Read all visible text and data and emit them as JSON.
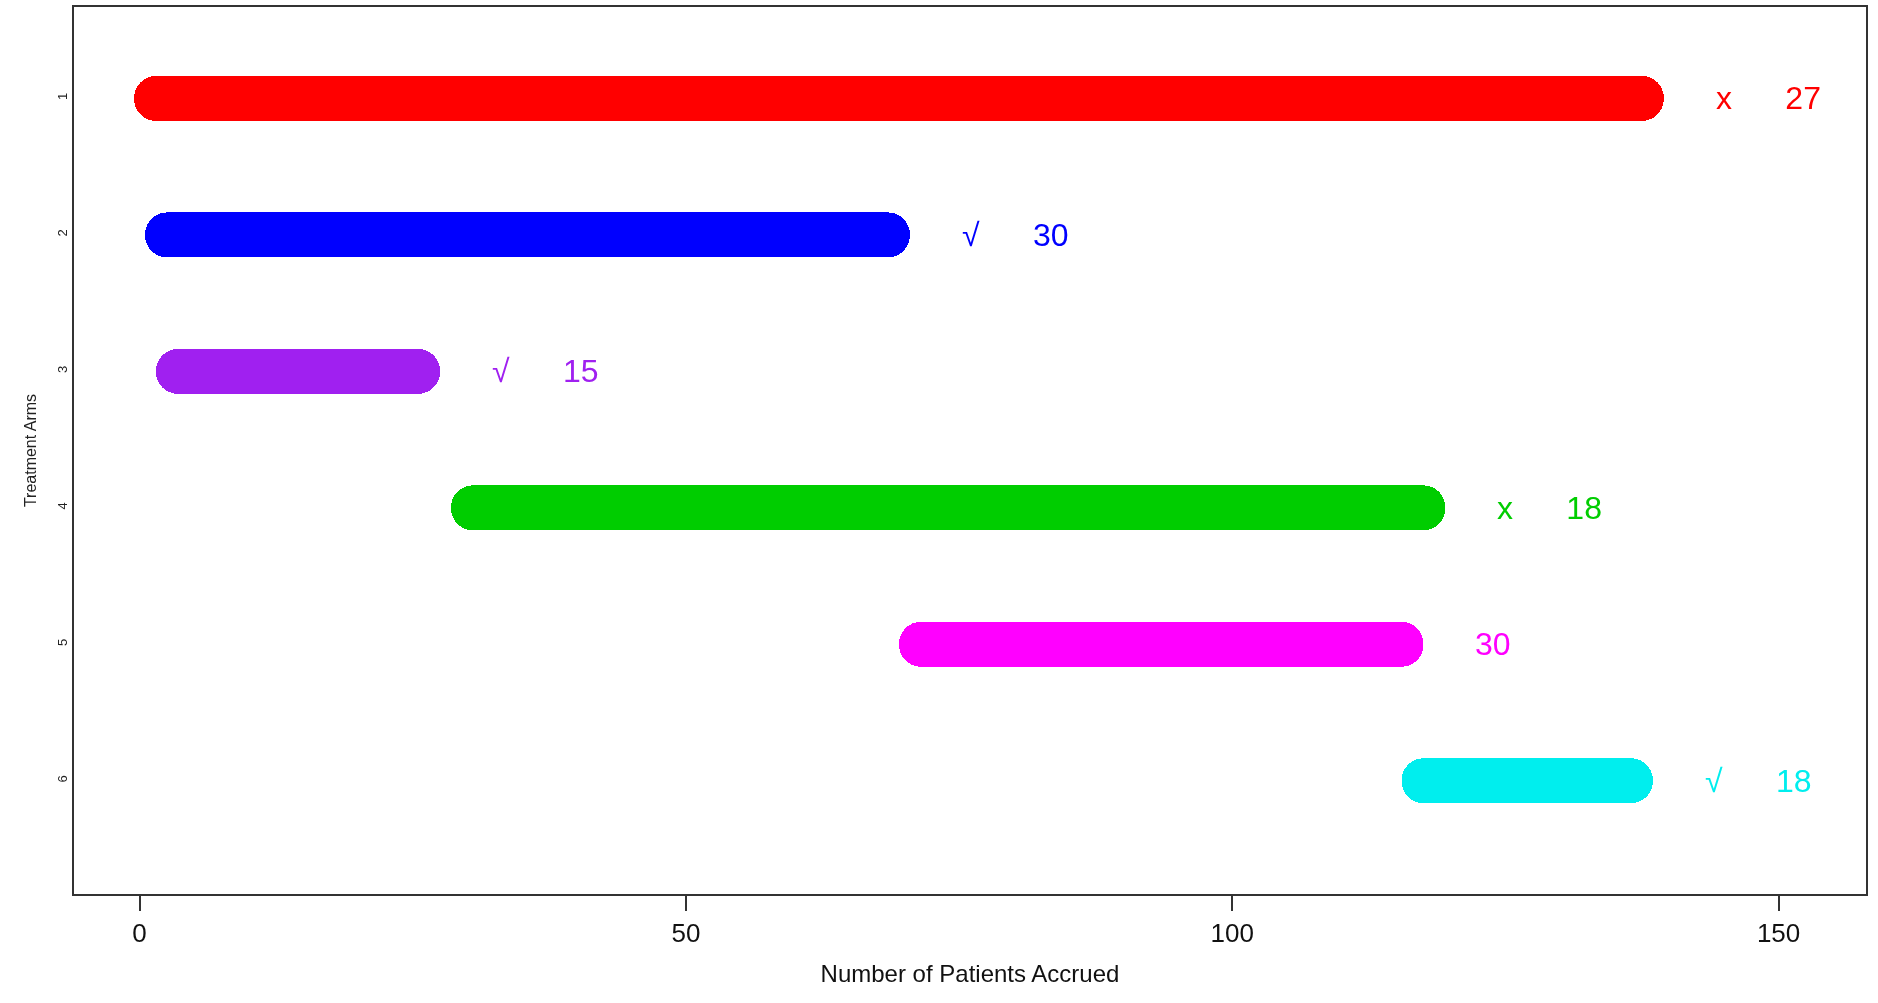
{
  "chart_data": {
    "type": "bar",
    "orientation": "horizontal",
    "categories": [
      "1",
      "2",
      "3",
      "4",
      "5",
      "6"
    ],
    "base": [
      -0.5,
      0.5,
      1.5,
      28.5,
      69.5,
      115.5
    ],
    "values": [
      140,
      70,
      26,
      91,
      48,
      23
    ],
    "colors": [
      "#ff0000",
      "#0000ff",
      "#a020f0",
      "#00cd00",
      "#ff00ff",
      "#00eeee"
    ],
    "xlim": [
      -6,
      158
    ],
    "xticks": [
      0,
      50,
      100,
      150
    ],
    "xlabel": "Number of Patients Accrued",
    "ylabel": "Treatment Arms",
    "annotations": [
      {
        "text": "x 27",
        "x": 139.5,
        "y": "1"
      },
      {
        "text": "√ 30",
        "x": 70.5,
        "y": "2"
      },
      {
        "text": "√ 15",
        "x": 27.5,
        "y": "3"
      },
      {
        "text": "x 18",
        "x": 119.5,
        "y": "4"
      },
      {
        "text": "30",
        "x": 117.5,
        "y": "5"
      },
      {
        "text": "√ 18",
        "x": 138.5,
        "y": "6"
      }
    ]
  }
}
